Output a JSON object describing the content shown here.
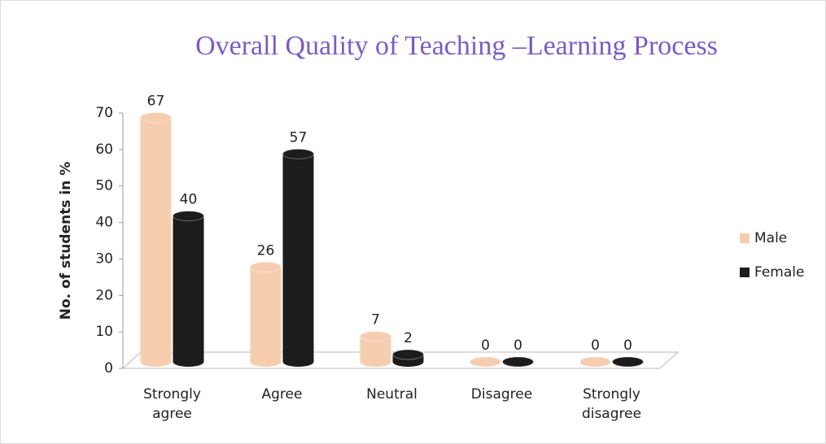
{
  "chart_data": {
    "type": "bar",
    "title": "Overall Quality of Teaching –Learning Process",
    "y_label": "No. of students in %",
    "categories": [
      "Strongly agree",
      "Agree",
      "Neutral",
      "Disagree",
      "Strongly disagree"
    ],
    "series": [
      {
        "name": "Male",
        "color": "#f7cdb0",
        "values": [
          67,
          26,
          7,
          0,
          0
        ]
      },
      {
        "name": "Female",
        "color": "#1c1c1c",
        "values": [
          40,
          57,
          2,
          0,
          0
        ]
      }
    ],
    "ylim": [
      0,
      70
    ],
    "yticks": [
      0,
      10,
      20,
      30,
      40,
      50,
      60,
      70
    ],
    "legend": "right"
  }
}
